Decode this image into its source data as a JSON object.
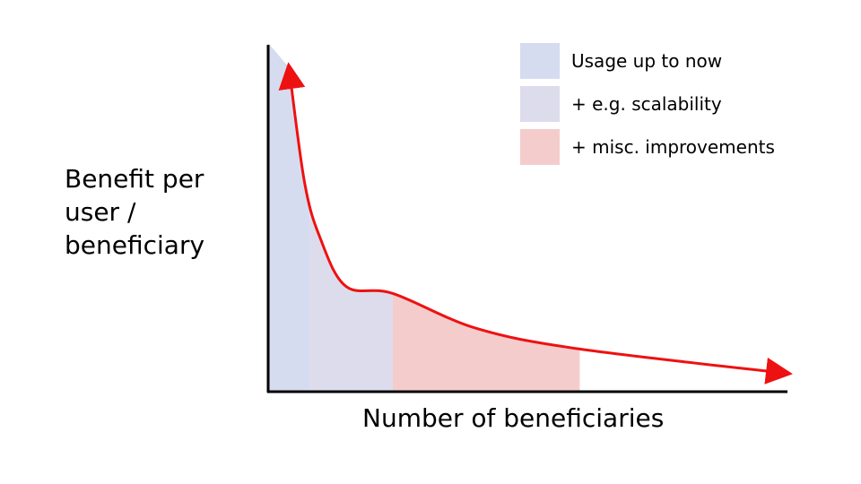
{
  "chart_data": {
    "type": "area",
    "ylabel_lines": [
      "Benefit per",
      "user /",
      "beneficiary"
    ],
    "xlabel": "Number of beneficiaries",
    "legend_position": "top-right",
    "series": [
      {
        "name": "Usage up to now",
        "color": "#d5dcf0",
        "x_range": [
          0.0,
          0.08
        ]
      },
      {
        "name": "+ e.g. scalability",
        "color": "#dcdcec",
        "x_range": [
          0.08,
          0.24
        ]
      },
      {
        "name": "+ misc. improvements",
        "color": "#f4cccc",
        "x_range": [
          0.24,
          0.6
        ]
      }
    ],
    "curve": {
      "shape": "decreasing (long tail)",
      "color": "#ee1111",
      "arrowheads": "both ends",
      "x": [
        0.04,
        0.07,
        0.1,
        0.15,
        0.24,
        0.4,
        0.6,
        1.0
      ],
      "y": [
        0.93,
        0.6,
        0.44,
        0.3,
        0.28,
        0.18,
        0.12,
        0.05
      ]
    },
    "axes": {
      "x_range": [
        0,
        1
      ],
      "y_range": [
        0,
        1
      ],
      "grid": false
    }
  }
}
